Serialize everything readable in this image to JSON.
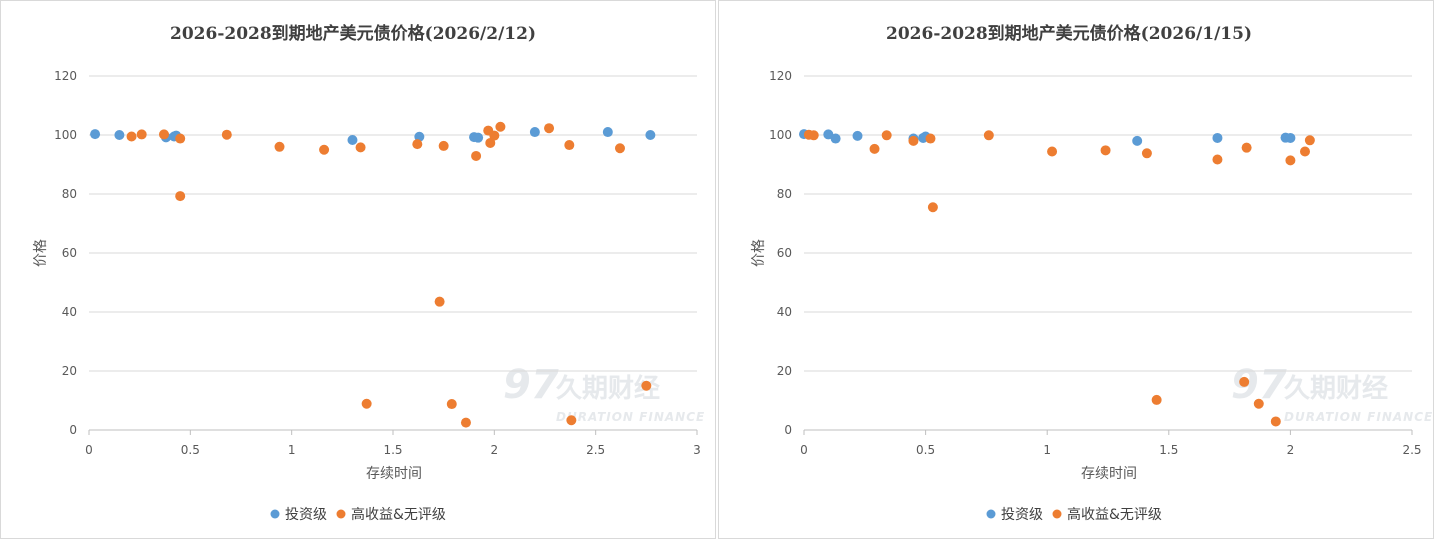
{
  "colors": {
    "investment_grade": "#5b9bd5",
    "high_yield": "#ed7d31",
    "grid": "#d9d9d9",
    "axis": "#bfbfbf"
  },
  "watermark": {
    "text": "久期财经",
    "subtext": "DURATION FINANCE"
  },
  "chart_data": [
    {
      "type": "scatter",
      "title": "2026-2028到期地产美元债价格(2026/2/12)",
      "xlabel": "存续时间",
      "ylabel": "价格",
      "xlim": [
        0,
        3
      ],
      "ylim": [
        0,
        120
      ],
      "xticks": [
        0,
        0.5,
        1,
        1.5,
        2,
        2.5,
        3
      ],
      "xtick_labels": [
        "0",
        "0.5",
        "1",
        "1.5",
        "2",
        "2.5",
        "3"
      ],
      "yticks": [
        0,
        20,
        40,
        60,
        80,
        100,
        120
      ],
      "grid": true,
      "legend": "bottom",
      "series": [
        {
          "name": "投资级",
          "color": "#5b9bd5",
          "points": [
            [
              0.03,
              100.3
            ],
            [
              0.15,
              100.0
            ],
            [
              0.38,
              99.2
            ],
            [
              0.42,
              99.5
            ],
            [
              0.43,
              99.8
            ],
            [
              1.3,
              98.3
            ],
            [
              1.63,
              99.4
            ],
            [
              1.9,
              99.3
            ],
            [
              1.92,
              99.1
            ],
            [
              2.2,
              101.0
            ],
            [
              2.56,
              101.0
            ],
            [
              2.77,
              100.0
            ]
          ]
        },
        {
          "name": "高收益&无评级",
          "color": "#ed7d31",
          "points": [
            [
              0.21,
              99.5
            ],
            [
              0.26,
              100.2
            ],
            [
              0.37,
              100.2
            ],
            [
              0.45,
              98.8
            ],
            [
              0.45,
              79.3
            ],
            [
              0.68,
              100.1
            ],
            [
              0.94,
              96.0
            ],
            [
              1.16,
              95.0
            ],
            [
              1.34,
              95.8
            ],
            [
              1.37,
              8.9
            ],
            [
              1.62,
              96.9
            ],
            [
              1.73,
              43.5
            ],
            [
              1.75,
              96.3
            ],
            [
              1.79,
              8.8
            ],
            [
              1.86,
              2.5
            ],
            [
              1.91,
              92.9
            ],
            [
              1.97,
              101.5
            ],
            [
              1.98,
              97.3
            ],
            [
              2.0,
              99.8
            ],
            [
              2.03,
              102.8
            ],
            [
              2.27,
              102.3
            ],
            [
              2.37,
              96.6
            ],
            [
              2.38,
              3.3
            ],
            [
              2.62,
              95.5
            ],
            [
              2.75,
              15.0
            ]
          ]
        }
      ]
    },
    {
      "type": "scatter",
      "title": "2026-2028到期地产美元债价格(2026/1/15)",
      "xlabel": "存续时间",
      "ylabel": "价格",
      "xlim": [
        0,
        2.5
      ],
      "ylim": [
        0,
        120
      ],
      "xticks": [
        0,
        0.5,
        1,
        1.5,
        2,
        2.5
      ],
      "xtick_labels": [
        "0",
        "0.5",
        "1",
        "1.5",
        "2",
        "2.5"
      ],
      "yticks": [
        0,
        20,
        40,
        60,
        80,
        100,
        120
      ],
      "grid": true,
      "legend": "bottom",
      "series": [
        {
          "name": "投资级",
          "color": "#5b9bd5",
          "points": [
            [
              0.0,
              100.3
            ],
            [
              0.1,
              100.2
            ],
            [
              0.13,
              98.8
            ],
            [
              0.22,
              99.7
            ],
            [
              0.45,
              98.8
            ],
            [
              0.49,
              99.0
            ],
            [
              0.5,
              99.5
            ],
            [
              1.37,
              98.0
            ],
            [
              1.7,
              99.0
            ],
            [
              1.98,
              99.1
            ],
            [
              2.0,
              99.0
            ]
          ]
        },
        {
          "name": "高收益&无评级",
          "color": "#ed7d31",
          "points": [
            [
              0.02,
              100.1
            ],
            [
              0.04,
              99.9
            ],
            [
              0.29,
              95.3
            ],
            [
              0.34,
              99.9
            ],
            [
              0.45,
              98.0
            ],
            [
              0.52,
              98.8
            ],
            [
              0.53,
              75.5
            ],
            [
              0.76,
              99.9
            ],
            [
              1.02,
              94.4
            ],
            [
              1.24,
              94.8
            ],
            [
              1.41,
              93.8
            ],
            [
              1.45,
              10.2
            ],
            [
              1.7,
              91.7
            ],
            [
              1.81,
              16.3
            ],
            [
              1.82,
              95.7
            ],
            [
              1.87,
              8.9
            ],
            [
              1.94,
              2.9
            ],
            [
              2.0,
              91.4
            ],
            [
              2.06,
              94.4
            ],
            [
              2.08,
              98.2
            ]
          ]
        }
      ]
    }
  ]
}
